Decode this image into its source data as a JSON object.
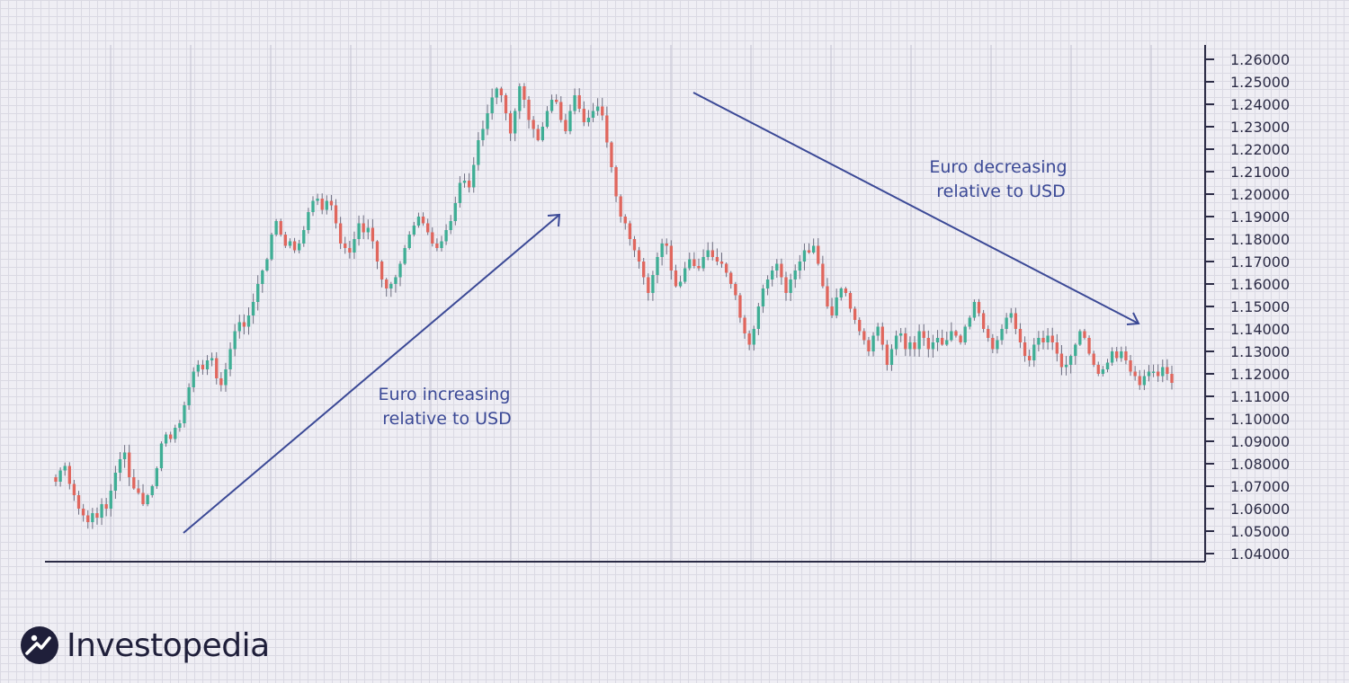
{
  "brand": {
    "name": "Investopedia"
  },
  "colors": {
    "up": "#3fae95",
    "down": "#e0665d",
    "axis": "#2b2b45",
    "annotation": "#3b4996",
    "grid": "#cfcedb"
  },
  "chart_data": {
    "type": "candlestick",
    "title": "",
    "xlabel": "",
    "ylabel": "",
    "ylim": [
      1.04,
      1.26
    ],
    "grid": true,
    "legend": "none",
    "yticks": [
      "1.26000",
      "1.25000",
      "1.24000",
      "1.23000",
      "1.22000",
      "1.21000",
      "1.20000",
      "1.19000",
      "1.18000",
      "1.17000",
      "1.16000",
      "1.15000",
      "1.14000",
      "1.13000",
      "1.12000",
      "1.11000",
      "1.10000",
      "1.09000",
      "1.08000",
      "1.07000",
      "1.06000",
      "1.05000",
      "1.04000"
    ],
    "series": [
      {
        "values": [
          1.072,
          1.077,
          1.079,
          1.071,
          1.066,
          1.06,
          1.057,
          1.054,
          1.058,
          1.056,
          1.062,
          1.06,
          1.068,
          1.076,
          1.082,
          1.085,
          1.074,
          1.069,
          1.067,
          1.062,
          1.066,
          1.07,
          1.078,
          1.089,
          1.093,
          1.091,
          1.096,
          1.098,
          1.106,
          1.114,
          1.121,
          1.124,
          1.122,
          1.126,
          1.127,
          1.118,
          1.115,
          1.122,
          1.131,
          1.139,
          1.143,
          1.141,
          1.146,
          1.152,
          1.16,
          1.166,
          1.171,
          1.182,
          1.188,
          1.182,
          1.177,
          1.179,
          1.175,
          1.178,
          1.184,
          1.192,
          1.197,
          1.198,
          1.193,
          1.197,
          1.195,
          1.187,
          1.178,
          1.176,
          1.174,
          1.18,
          1.187,
          1.183,
          1.185,
          1.179,
          1.17,
          1.162,
          1.158,
          1.16,
          1.163,
          1.169,
          1.176,
          1.182,
          1.186,
          1.19,
          1.187,
          1.183,
          1.178,
          1.176,
          1.179,
          1.184,
          1.188,
          1.196,
          1.205,
          1.206,
          1.203,
          1.213,
          1.224,
          1.229,
          1.236,
          1.243,
          1.247,
          1.244,
          1.236,
          1.227,
          1.237,
          1.248,
          1.242,
          1.233,
          1.229,
          1.224,
          1.23,
          1.237,
          1.242,
          1.241,
          1.233,
          1.228,
          1.237,
          1.244,
          1.238,
          1.232,
          1.234,
          1.237,
          1.239,
          1.235,
          1.223,
          1.212,
          1.199,
          1.19,
          1.187,
          1.18,
          1.175,
          1.17,
          1.163,
          1.156,
          1.164,
          1.172,
          1.178,
          1.177,
          1.166,
          1.159,
          1.161,
          1.167,
          1.171,
          1.168,
          1.167,
          1.172,
          1.175,
          1.172,
          1.17,
          1.169,
          1.165,
          1.16,
          1.155,
          1.145,
          1.138,
          1.133,
          1.14,
          1.15,
          1.158,
          1.162,
          1.166,
          1.169,
          1.163,
          1.156,
          1.162,
          1.166,
          1.17,
          1.175,
          1.174,
          1.177,
          1.169,
          1.159,
          1.15,
          1.146,
          1.154,
          1.158,
          1.156,
          1.149,
          1.144,
          1.139,
          1.135,
          1.13,
          1.137,
          1.141,
          1.133,
          1.124,
          1.131,
          1.137,
          1.138,
          1.131,
          1.134,
          1.131,
          1.139,
          1.136,
          1.131,
          1.134,
          1.136,
          1.133,
          1.135,
          1.139,
          1.137,
          1.134,
          1.141,
          1.145,
          1.152,
          1.147,
          1.14,
          1.136,
          1.131,
          1.135,
          1.14,
          1.145,
          1.147,
          1.14,
          1.134,
          1.128,
          1.126,
          1.133,
          1.136,
          1.134,
          1.137,
          1.134,
          1.129,
          1.123,
          1.124,
          1.128,
          1.133,
          1.139,
          1.136,
          1.129,
          1.124,
          1.12,
          1.122,
          1.125,
          1.13,
          1.127,
          1.13,
          1.126,
          1.121,
          1.119,
          1.115,
          1.119,
          1.121,
          1.121,
          1.119,
          1.123,
          1.12,
          1.116
        ]
      }
    ],
    "annotations": [
      {
        "text_lines": [
          "Euro increasing",
          "relative to USD"
        ]
      },
      {
        "text_lines": [
          "Euro decreasing",
          "relative to USD"
        ]
      }
    ]
  }
}
